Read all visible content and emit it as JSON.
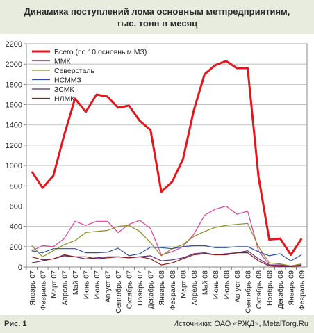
{
  "title_line1": "Динамика поступлений лома основным метпредприятиям,",
  "title_line2": "тыс. тонн в месяц",
  "figure_label": "Рис. 1",
  "source": "Источники: ОАО «РЖД», MetalTorg.Ru",
  "chart_data": {
    "type": "line",
    "title": "Динамика поступлений лома основным метпредприятиям, тыс. тонн в месяц",
    "xlabel": "",
    "ylabel": "",
    "ylim": [
      0,
      2200
    ],
    "yticks": [
      0,
      200,
      400,
      600,
      800,
      1000,
      1200,
      1400,
      1600,
      1800,
      2000,
      2200
    ],
    "grid": true,
    "legend_position": "top-left",
    "categories": [
      "Январь 07",
      "Февраль 07",
      "Март 07",
      "Апрель 07",
      "Май 07",
      "Июнь 07",
      "Июль 07",
      "Август 07",
      "Сентябрь 07",
      "Октябрь 07",
      "Ноябрь 07",
      "Декабрь 07",
      "Январь 08",
      "Февраль 08",
      "Март 08",
      "Апрель 08",
      "Май 08",
      "Июнь 08",
      "Июль 08",
      "Август 08",
      "Сентябрь 08",
      "Октябрь 08",
      "Ноябрь 08",
      "Декабрь 08",
      "Январь 09",
      "Февраль 09"
    ],
    "series": [
      {
        "name": "Всего (по 10 основным МЗ)",
        "color": "#e8141b",
        "width": 3,
        "values": [
          940,
          780,
          900,
          1300,
          1660,
          1530,
          1700,
          1680,
          1570,
          1590,
          1440,
          1350,
          740,
          840,
          1060,
          1540,
          1900,
          1990,
          2030,
          1960,
          1960,
          890,
          270,
          280,
          120,
          280
        ]
      },
      {
        "name": "ММК",
        "color": "#e0409a",
        "width": 1.2,
        "values": [
          160,
          210,
          200,
          280,
          450,
          410,
          450,
          450,
          340,
          420,
          460,
          380,
          120,
          150,
          200,
          320,
          510,
          570,
          600,
          520,
          550,
          160,
          20,
          10,
          5,
          20
        ]
      },
      {
        "name": "Северсталь",
        "color": "#8c8c1f",
        "width": 1.2,
        "values": [
          210,
          100,
          160,
          220,
          260,
          340,
          350,
          360,
          400,
          410,
          350,
          240,
          110,
          180,
          220,
          300,
          350,
          390,
          410,
          420,
          430,
          200,
          40,
          30,
          10,
          30
        ]
      },
      {
        "name": "НСММЗ",
        "color": "#2f52a8",
        "width": 1.2,
        "values": [
          160,
          140,
          180,
          180,
          180,
          140,
          140,
          145,
          185,
          110,
          130,
          195,
          190,
          180,
          200,
          210,
          210,
          190,
          190,
          200,
          200,
          150,
          110,
          130,
          60,
          120
        ]
      },
      {
        "name": "ЗСМК",
        "color": "#5b2d7a",
        "width": 1.2,
        "values": [
          40,
          60,
          80,
          110,
          100,
          80,
          90,
          100,
          100,
          90,
          100,
          110,
          60,
          70,
          90,
          130,
          140,
          120,
          130,
          140,
          160,
          80,
          20,
          20,
          5,
          10
        ]
      },
      {
        "name": "НЛМК",
        "color": "#8b1a1a",
        "width": 1.2,
        "values": [
          100,
          70,
          80,
          120,
          100,
          100,
          80,
          90,
          100,
          90,
          100,
          80,
          20,
          40,
          80,
          120,
          130,
          120,
          120,
          140,
          140,
          60,
          10,
          5,
          5,
          20
        ]
      }
    ]
  }
}
